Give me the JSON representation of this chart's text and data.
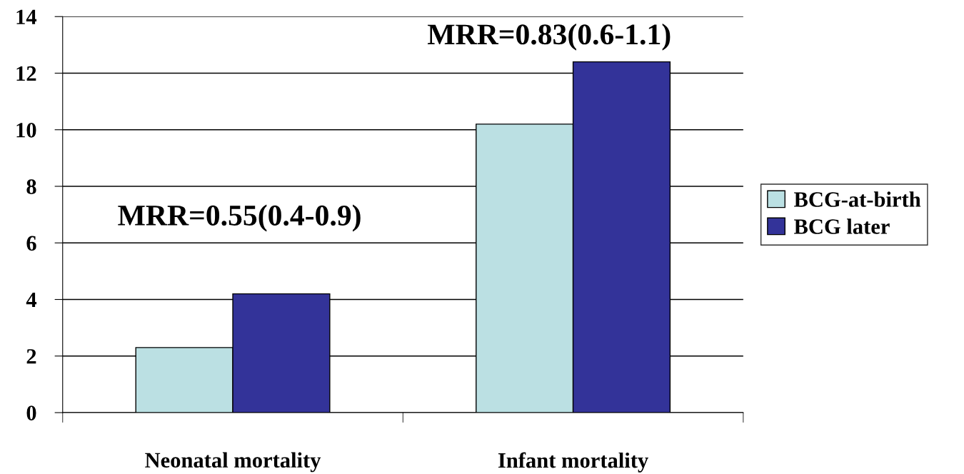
{
  "chart_data": {
    "type": "bar",
    "categories": [
      "Neonatal mortality",
      "Infant mortality"
    ],
    "series": [
      {
        "name": "BCG-at-birth",
        "color": "#bbe0e3",
        "values": [
          2.3,
          10.2
        ]
      },
      {
        "name": "BCG later",
        "color": "#333399",
        "values": [
          4.2,
          12.4
        ]
      }
    ],
    "annotations": [
      "MRR=0.55(0.4-0.9)",
      "MRR=0.83(0.6-1.1)"
    ],
    "ylim": [
      0,
      14
    ],
    "yticks": [
      0,
      2,
      4,
      6,
      8,
      10,
      12,
      14
    ],
    "grid": "y",
    "legend": "right"
  }
}
